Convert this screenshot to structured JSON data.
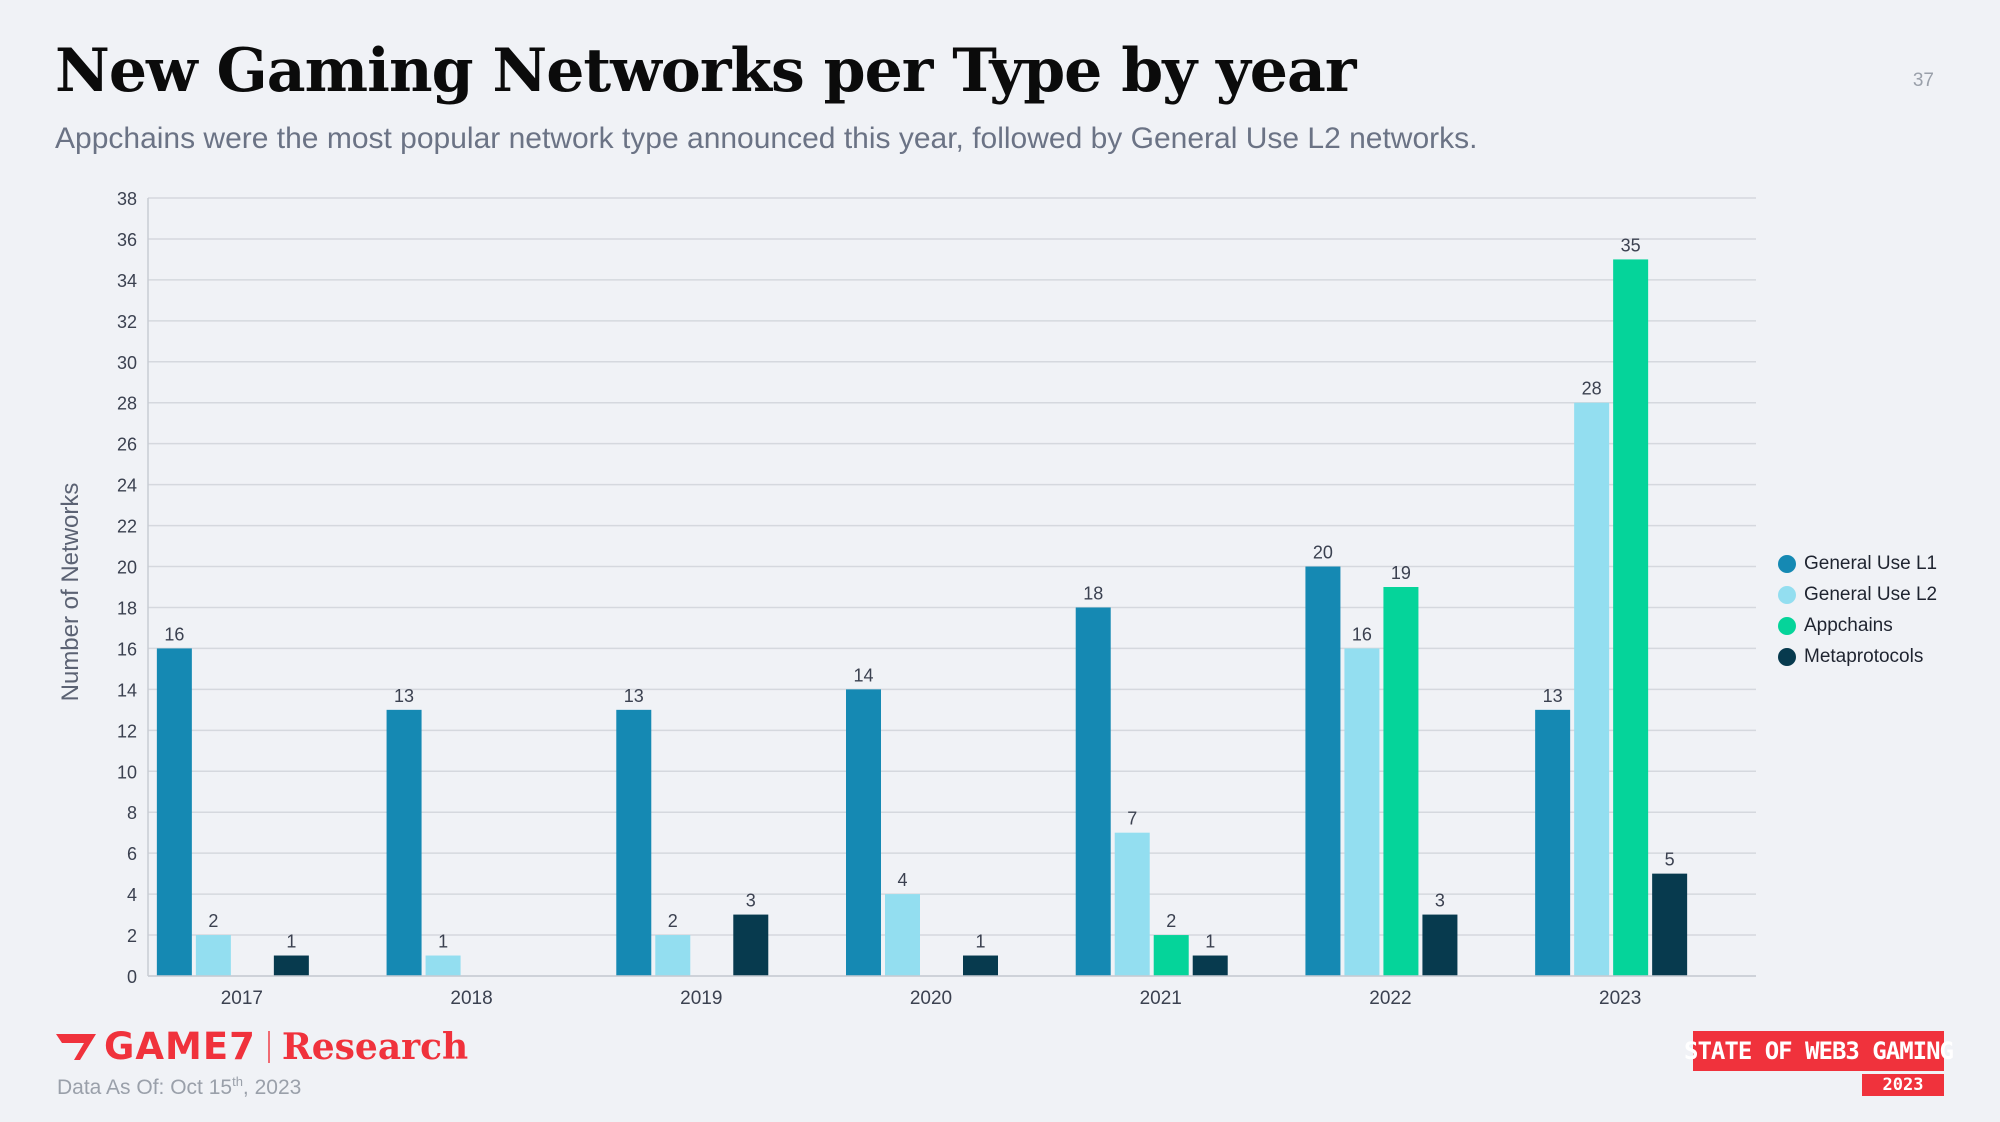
{
  "header": {
    "title": "New Gaming Networks per Type by year",
    "subtitle": "Appchains were the most popular network type announced this year, followed by General Use L2 networks.",
    "page_number": "37"
  },
  "footer": {
    "logo_game7": "GAME7",
    "logo_research": "Research",
    "data_as_of_prefix": "Data As Of: Oct 15",
    "data_as_of_sup": "th",
    "data_as_of_suffix": ", 2023",
    "state_logo": "STATE OF WEB3 GAMING",
    "state_logo_year": "2023"
  },
  "colors": {
    "general_use_l1": "#1589b3",
    "general_use_l2": "#93def0",
    "appchains": "#05d49a",
    "metaprotocols": "#073a4e",
    "brand_red": "#f0323c"
  },
  "chart_data": {
    "type": "bar",
    "title": "New Gaming Networks per Type by year",
    "xlabel": "",
    "ylabel": "Number of Networks",
    "ylim": [
      0,
      38
    ],
    "ytick_step": 2,
    "grid": true,
    "legend_position": "right",
    "categories": [
      "2017",
      "2018",
      "2019",
      "2020",
      "2021",
      "2022",
      "2023"
    ],
    "series": [
      {
        "name": "General Use L1",
        "color": "#1589b3",
        "values": [
          16,
          13,
          13,
          14,
          18,
          20,
          13
        ]
      },
      {
        "name": "General Use L2",
        "color": "#93def0",
        "values": [
          2,
          1,
          2,
          4,
          7,
          16,
          28
        ]
      },
      {
        "name": "Appchains",
        "color": "#05d49a",
        "values": [
          0,
          0,
          0,
          0,
          2,
          19,
          35
        ]
      },
      {
        "name": "Metaprotocols",
        "color": "#073a4e",
        "values": [
          1,
          0,
          3,
          1,
          1,
          3,
          5
        ]
      }
    ]
  }
}
